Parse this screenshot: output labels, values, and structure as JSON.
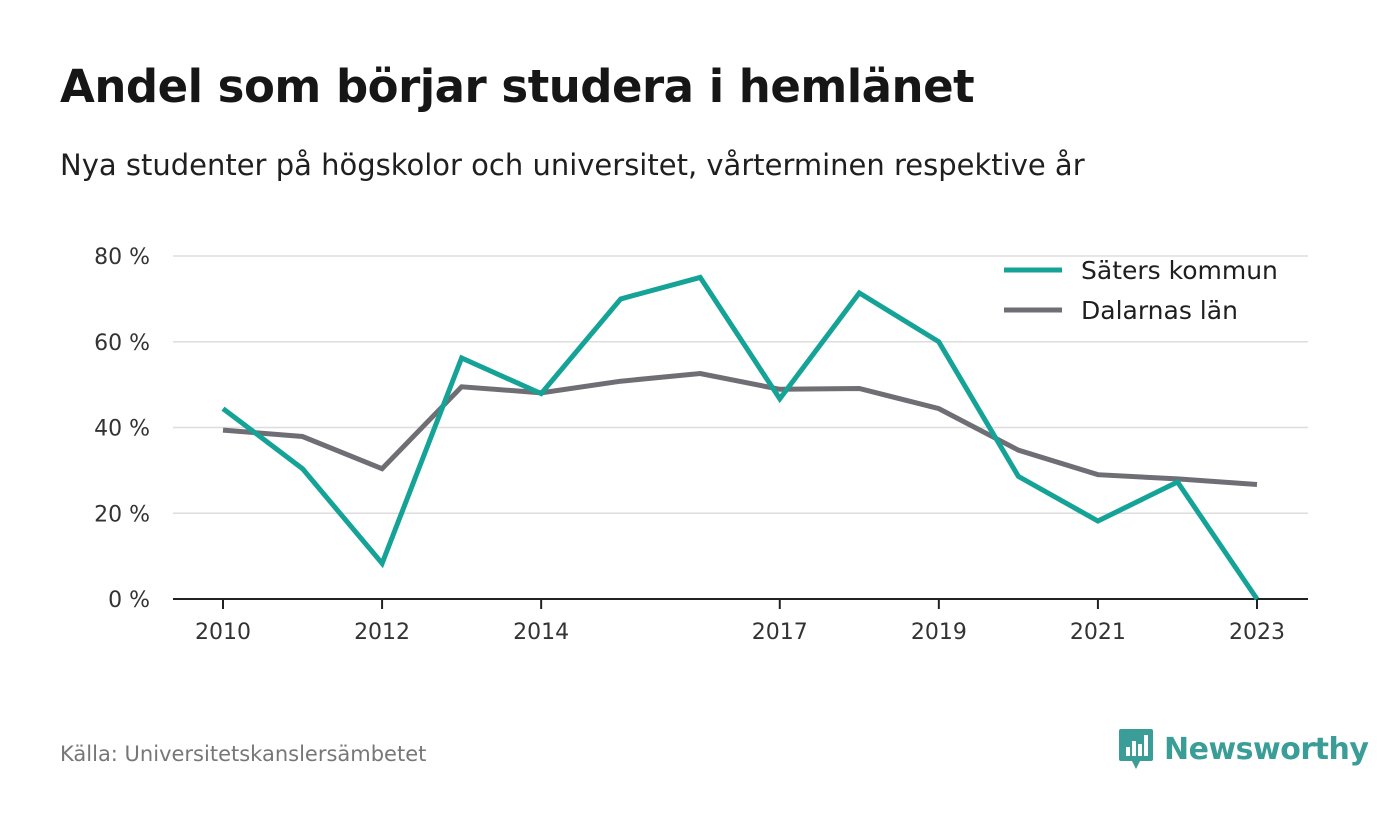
{
  "colors": {
    "series_1": "#14a396",
    "series_2": "#6f6e74",
    "grid": "#dddddd",
    "axis": "#222222",
    "brand": "#3a9d97"
  },
  "source": "Källa: Universitetskanslersämbetet",
  "brand": {
    "name": "Newsworthy",
    "icon": "newsworthy-logo-icon"
  },
  "chart_data": {
    "type": "line",
    "title": "Andel som börjar studera i hemlänet",
    "subtitle": "Nya studenter på högskolor och universitet, vårterminen respektive år",
    "xlabel": "",
    "ylabel": "",
    "x": [
      2010,
      2011,
      2012,
      2013,
      2014,
      2015,
      2016,
      2017,
      2018,
      2019,
      2020,
      2021,
      2022,
      2023
    ],
    "xticks": [
      "2010",
      "2012",
      "2014",
      "2017",
      "2019",
      "2021",
      "2023"
    ],
    "ylim": [
      0,
      80
    ],
    "yticks": [
      0,
      20,
      40,
      60,
      80
    ],
    "ytick_labels": [
      "0 %",
      "20 %",
      "40 %",
      "60 %",
      "80 %"
    ],
    "grid": true,
    "legend_position": "top-right",
    "series": [
      {
        "name": "Säters kommun",
        "values": [
          44.4,
          30.4,
          8.3,
          56.2,
          47.9,
          70,
          75,
          46.7,
          71.4,
          60,
          28.6,
          18.2,
          27.3,
          0
        ]
      },
      {
        "name": "Dalarnas län",
        "values": [
          39.4,
          37.9,
          30.4,
          49.5,
          48.1,
          50.8,
          52.6,
          48.9,
          49.1,
          44.4,
          34.7,
          29,
          28,
          26.7
        ]
      }
    ]
  }
}
